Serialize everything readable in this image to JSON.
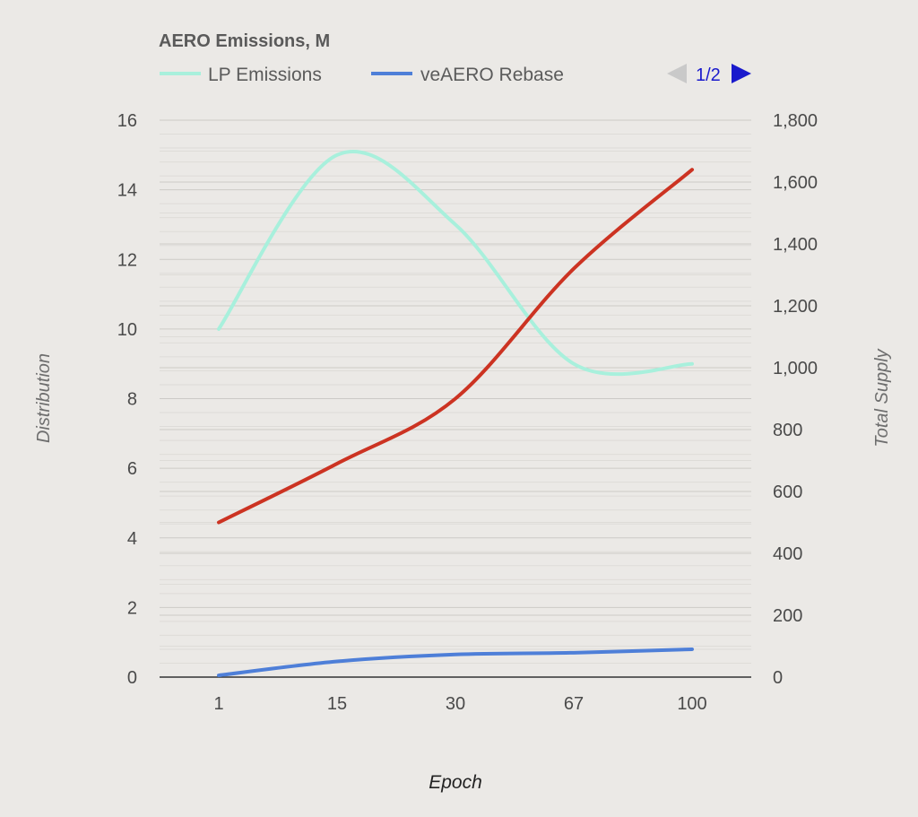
{
  "chart_data": {
    "type": "line",
    "title": "AERO Emissions, M",
    "xlabel": "Epoch",
    "ylabel_left": "Distribution",
    "ylabel_right": "Total Supply",
    "categories": [
      "1",
      "15",
      "30",
      "67",
      "100"
    ],
    "ylim_left": [
      0,
      16
    ],
    "yticks_left": [
      0,
      2,
      4,
      6,
      8,
      10,
      12,
      14,
      16
    ],
    "ylim_right": [
      0,
      1800
    ],
    "yticks_right": [
      "0",
      "200",
      "400",
      "600",
      "800",
      "1,000",
      "1,200",
      "1,400",
      "1,600",
      "1,800"
    ],
    "grid": true,
    "legend_position": "top-left",
    "legend_pager": "1/2",
    "series": [
      {
        "name": "LP Emissions",
        "axis": "left",
        "color": "#a8f0dc",
        "values": [
          10,
          15,
          13,
          9,
          9
        ]
      },
      {
        "name": "veAERO Rebase",
        "axis": "left",
        "color": "#4e7fd8",
        "values": [
          0.05,
          0.45,
          0.65,
          0.7,
          0.8
        ]
      },
      {
        "axis": "right",
        "color": "#cc3322",
        "values": [
          500,
          690,
          900,
          1320,
          1640
        ]
      }
    ]
  }
}
